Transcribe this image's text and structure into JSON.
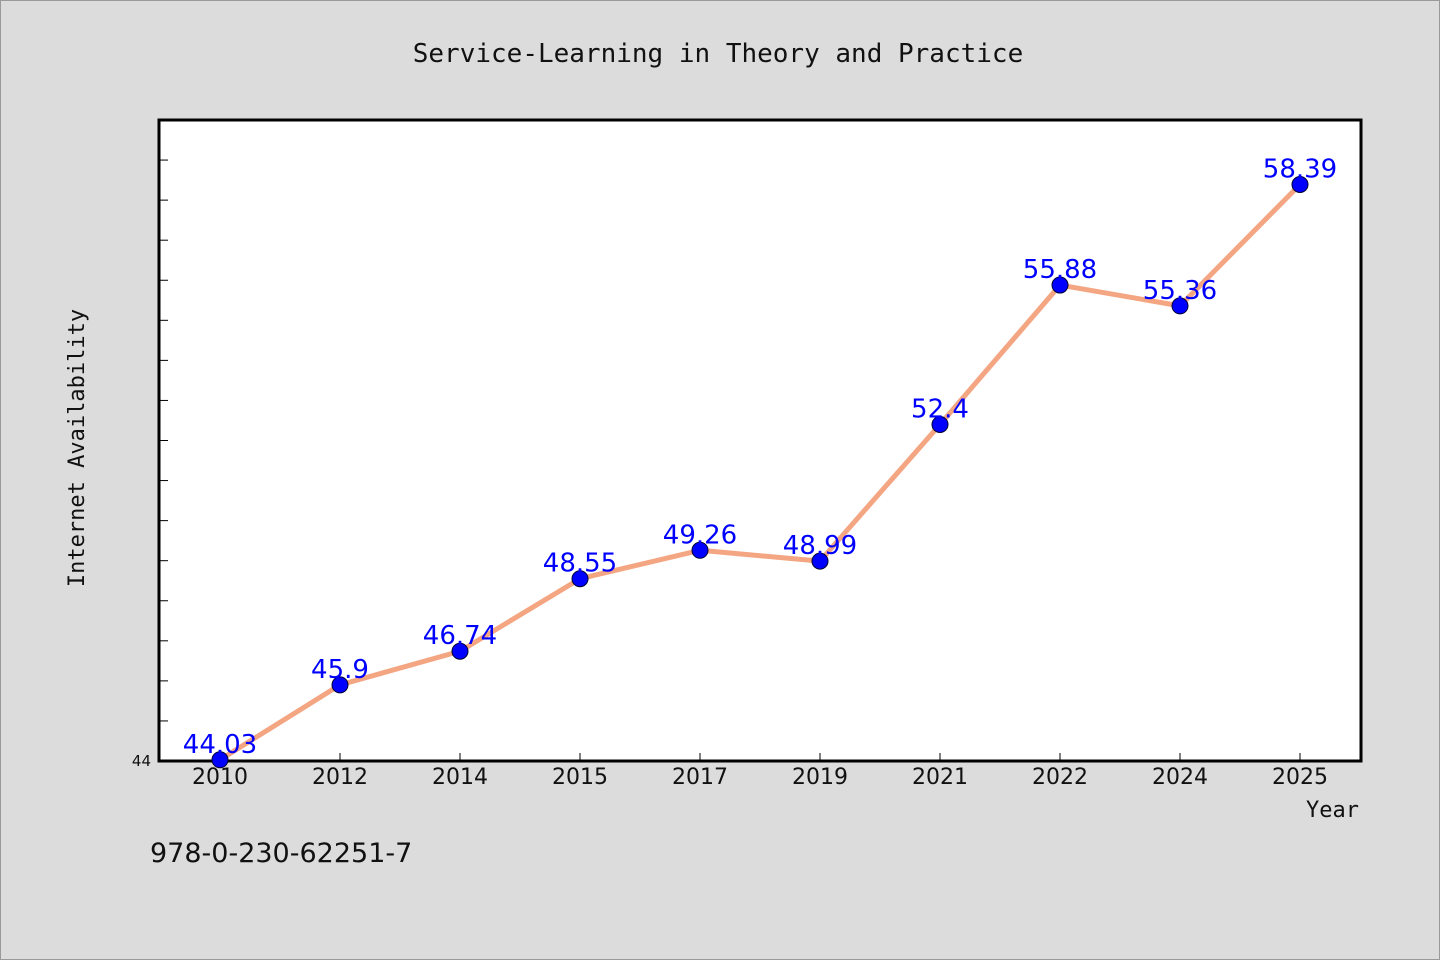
{
  "chart_data": {
    "type": "line",
    "title": "Service-Learning in Theory and Practice",
    "xlabel": "Year",
    "ylabel": "Internet Availability",
    "categories": [
      "2010",
      "2012",
      "2014",
      "2015",
      "2017",
      "2019",
      "2021",
      "2022",
      "2024",
      "2025"
    ],
    "series": [
      {
        "values": [
          44.03,
          45.9,
          46.74,
          48.55,
          49.26,
          48.99,
          52.4,
          55.88,
          55.36,
          58.39
        ]
      }
    ],
    "data_labels": [
      "44.03",
      "45.9",
      "46.74",
      "48.55",
      "49.26",
      "48.99",
      "52.4",
      "55.88",
      "55.36",
      "58.39"
    ],
    "ylim": [
      44,
      60
    ],
    "yticks_labeled": [
      "44"
    ],
    "grid": false,
    "line_color": "#f4a582",
    "marker_color": "#0000ff",
    "label_color": "#0000ff",
    "plot_background": "#ffffff",
    "figure_background": "#dcdcdc"
  },
  "footer_text": "978-0-230-62251-7"
}
